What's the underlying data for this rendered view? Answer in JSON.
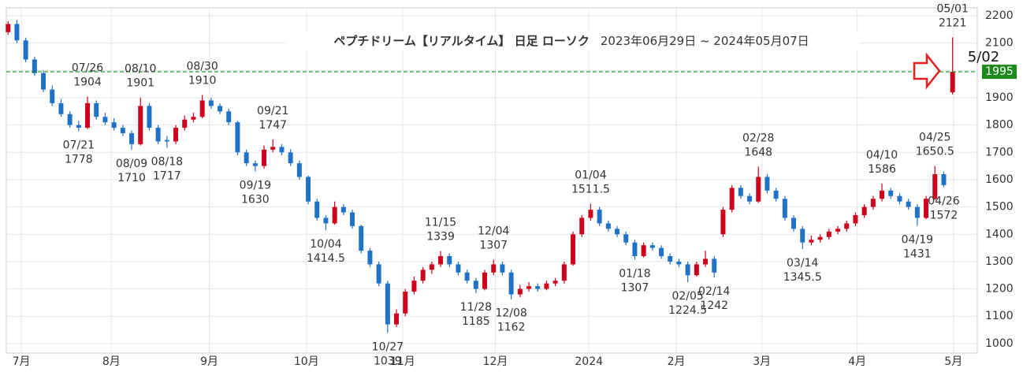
{
  "chart_data": {
    "type": "candlestick",
    "title": "ペプチドリーム【リアルタイム】 日足 ローソク",
    "subtitle": "2023年06月29日 ~ 2024年05月07日",
    "up_color": "#d0021b",
    "down_color": "#1f72c8",
    "xlim": [
      -0.2,
      109.8
    ],
    "xticks": [
      {
        "value": 1.5,
        "label": "7月"
      },
      {
        "value": 11.7,
        "label": "8月"
      },
      {
        "value": 22.8,
        "label": "9月"
      },
      {
        "value": 33.8,
        "label": "10月"
      },
      {
        "value": 44.7,
        "label": "11月"
      },
      {
        "value": 55.2,
        "label": "12月"
      },
      {
        "value": 65.8,
        "label": "2024"
      },
      {
        "value": 75.7,
        "label": "2月"
      },
      {
        "value": 85.4,
        "label": "3月"
      },
      {
        "value": 96.2,
        "label": "4月"
      },
      {
        "value": 107.1,
        "label": "5月"
      }
    ],
    "ylim": [
      965,
      2229
    ],
    "yticks": [
      1000,
      1100,
      1200,
      1300,
      1400,
      1500,
      1600,
      1700,
      1800,
      1900,
      2000,
      2100,
      2200
    ],
    "grid": true,
    "current_price": 1995,
    "current_color": "#1a8a1a",
    "marker_label": "5/02",
    "ohlc": [
      [
        2140,
        2180,
        2130,
        2170
      ],
      [
        2170,
        2185,
        2100,
        2110
      ],
      [
        2110,
        2120,
        2030,
        2040
      ],
      [
        2040,
        2050,
        1980,
        1990
      ],
      [
        1990,
        2000,
        1920,
        1930
      ],
      [
        1930,
        1945,
        1870,
        1880
      ],
      [
        1880,
        1895,
        1830,
        1840
      ],
      [
        1840,
        1850,
        1790,
        1800
      ],
      [
        1800,
        1815,
        1778,
        1790
      ],
      [
        1790,
        1904,
        1785,
        1880
      ],
      [
        1880,
        1890,
        1820,
        1830
      ],
      [
        1830,
        1845,
        1800,
        1810
      ],
      [
        1810,
        1825,
        1780,
        1790
      ],
      [
        1790,
        1800,
        1760,
        1770
      ],
      [
        1770,
        1780,
        1710,
        1730
      ],
      [
        1730,
        1901,
        1725,
        1870
      ],
      [
        1870,
        1880,
        1780,
        1790
      ],
      [
        1790,
        1800,
        1730,
        1740
      ],
      [
        1745,
        1760,
        1717,
        1740
      ],
      [
        1740,
        1800,
        1730,
        1790
      ],
      [
        1790,
        1835,
        1780,
        1820
      ],
      [
        1820,
        1845,
        1810,
        1830
      ],
      [
        1830,
        1910,
        1825,
        1890
      ],
      [
        1890,
        1900,
        1860,
        1870
      ],
      [
        1870,
        1880,
        1840,
        1850
      ],
      [
        1850,
        1860,
        1800,
        1810
      ],
      [
        1810,
        1815,
        1690,
        1700
      ],
      [
        1700,
        1710,
        1650,
        1660
      ],
      [
        1660,
        1670,
        1630,
        1650
      ],
      [
        1650,
        1725,
        1640,
        1710
      ],
      [
        1710,
        1747,
        1700,
        1720
      ],
      [
        1720,
        1730,
        1690,
        1700
      ],
      [
        1700,
        1712,
        1650,
        1660
      ],
      [
        1660,
        1670,
        1600,
        1610
      ],
      [
        1610,
        1615,
        1510,
        1520
      ],
      [
        1520,
        1530,
        1450,
        1460
      ],
      [
        1460,
        1470,
        1414.5,
        1440
      ],
      [
        1440,
        1520,
        1435,
        1500
      ],
      [
        1500,
        1510,
        1470,
        1480
      ],
      [
        1480,
        1490,
        1420,
        1430
      ],
      [
        1430,
        1435,
        1330,
        1340
      ],
      [
        1340,
        1350,
        1280,
        1290
      ],
      [
        1290,
        1300,
        1210,
        1220
      ],
      [
        1220,
        1230,
        1039,
        1070
      ],
      [
        1070,
        1125,
        1060,
        1110
      ],
      [
        1110,
        1200,
        1100,
        1190
      ],
      [
        1190,
        1245,
        1180,
        1230
      ],
      [
        1230,
        1280,
        1220,
        1270
      ],
      [
        1270,
        1300,
        1255,
        1290
      ],
      [
        1290,
        1339,
        1280,
        1320
      ],
      [
        1320,
        1330,
        1280,
        1290
      ],
      [
        1290,
        1300,
        1250,
        1260
      ],
      [
        1260,
        1270,
        1220,
        1230
      ],
      [
        1230,
        1240,
        1185,
        1200
      ],
      [
        1200,
        1270,
        1195,
        1260
      ],
      [
        1260,
        1307,
        1250,
        1290
      ],
      [
        1290,
        1300,
        1250,
        1260
      ],
      [
        1260,
        1270,
        1162,
        1180
      ],
      [
        1180,
        1215,
        1170,
        1200
      ],
      [
        1200,
        1225,
        1190,
        1210
      ],
      [
        1210,
        1220,
        1190,
        1200
      ],
      [
        1200,
        1230,
        1195,
        1220
      ],
      [
        1220,
        1240,
        1210,
        1230
      ],
      [
        1230,
        1300,
        1220,
        1290
      ],
      [
        1290,
        1410,
        1285,
        1400
      ],
      [
        1400,
        1470,
        1390,
        1460
      ],
      [
        1460,
        1511.5,
        1450,
        1490
      ],
      [
        1490,
        1500,
        1430,
        1440
      ],
      [
        1440,
        1450,
        1410,
        1420
      ],
      [
        1420,
        1430,
        1390,
        1400
      ],
      [
        1400,
        1410,
        1360,
        1370
      ],
      [
        1370,
        1380,
        1307,
        1320
      ],
      [
        1320,
        1370,
        1315,
        1360
      ],
      [
        1360,
        1370,
        1340,
        1350
      ],
      [
        1350,
        1360,
        1310,
        1320
      ],
      [
        1320,
        1330,
        1290,
        1300
      ],
      [
        1300,
        1310,
        1280,
        1290
      ],
      [
        1290,
        1300,
        1224.5,
        1250
      ],
      [
        1250,
        1300,
        1245,
        1290
      ],
      [
        1290,
        1340,
        1280,
        1310
      ],
      [
        1310,
        1320,
        1242,
        1260
      ],
      [
        1400,
        1500,
        1390,
        1490
      ],
      [
        1490,
        1580,
        1480,
        1570
      ],
      [
        1570,
        1580,
        1530,
        1540
      ],
      [
        1540,
        1550,
        1510,
        1520
      ],
      [
        1520,
        1648,
        1515,
        1610
      ],
      [
        1610,
        1620,
        1550,
        1560
      ],
      [
        1560,
        1570,
        1520,
        1530
      ],
      [
        1530,
        1540,
        1450,
        1460
      ],
      [
        1460,
        1470,
        1410,
        1420
      ],
      [
        1420,
        1430,
        1345.5,
        1370
      ],
      [
        1370,
        1395,
        1360,
        1380
      ],
      [
        1380,
        1400,
        1370,
        1390
      ],
      [
        1390,
        1420,
        1380,
        1410
      ],
      [
        1410,
        1430,
        1400,
        1420
      ],
      [
        1420,
        1450,
        1410,
        1440
      ],
      [
        1440,
        1480,
        1430,
        1470
      ],
      [
        1470,
        1510,
        1460,
        1500
      ],
      [
        1500,
        1540,
        1490,
        1530
      ],
      [
        1530,
        1586,
        1520,
        1560
      ],
      [
        1560,
        1570,
        1530,
        1540
      ],
      [
        1540,
        1550,
        1510,
        1520
      ],
      [
        1520,
        1530,
        1490,
        1500
      ],
      [
        1500,
        1510,
        1431,
        1460
      ],
      [
        1460,
        1540,
        1455,
        1530
      ],
      [
        1530,
        1650.5,
        1525,
        1620
      ],
      [
        1620,
        1630,
        1572,
        1580
      ],
      [
        1920,
        2121,
        1912,
        1995
      ]
    ],
    "annotations": [
      {
        "date": "07/21",
        "value": 1778
      },
      {
        "date": "07/26",
        "value": 1904
      },
      {
        "date": "08/09",
        "value": 1710
      },
      {
        "date": "08/10",
        "value": 1901
      },
      {
        "date": "08/18",
        "value": 1717
      },
      {
        "date": "08/30",
        "value": 1910
      },
      {
        "date": "09/19",
        "value": 1630
      },
      {
        "date": "09/21",
        "value": 1747
      },
      {
        "date": "10/04",
        "value": 1414.5
      },
      {
        "date": "10/27",
        "value": 1039
      },
      {
        "date": "11/15",
        "value": 1339
      },
      {
        "date": "11/28",
        "value": 1185
      },
      {
        "date": "12/04",
        "value": 1307
      },
      {
        "date": "12/08",
        "value": 1162
      },
      {
        "date": "01/04",
        "value": 1511.5
      },
      {
        "date": "01/18",
        "value": 1307
      },
      {
        "date": "02/05",
        "value": 1224.5
      },
      {
        "date": "02/14",
        "value": 1242
      },
      {
        "date": "02/28",
        "value": 1648
      },
      {
        "date": "03/14",
        "value": 1345.5
      },
      {
        "date": "04/10",
        "value": 1586
      },
      {
        "date": "04/19",
        "value": 1431
      },
      {
        "date": "04/25",
        "value": 1650.5
      },
      {
        "date": "04/26",
        "value": 1572
      },
      {
        "date": "05/01",
        "value": 2121
      }
    ]
  }
}
